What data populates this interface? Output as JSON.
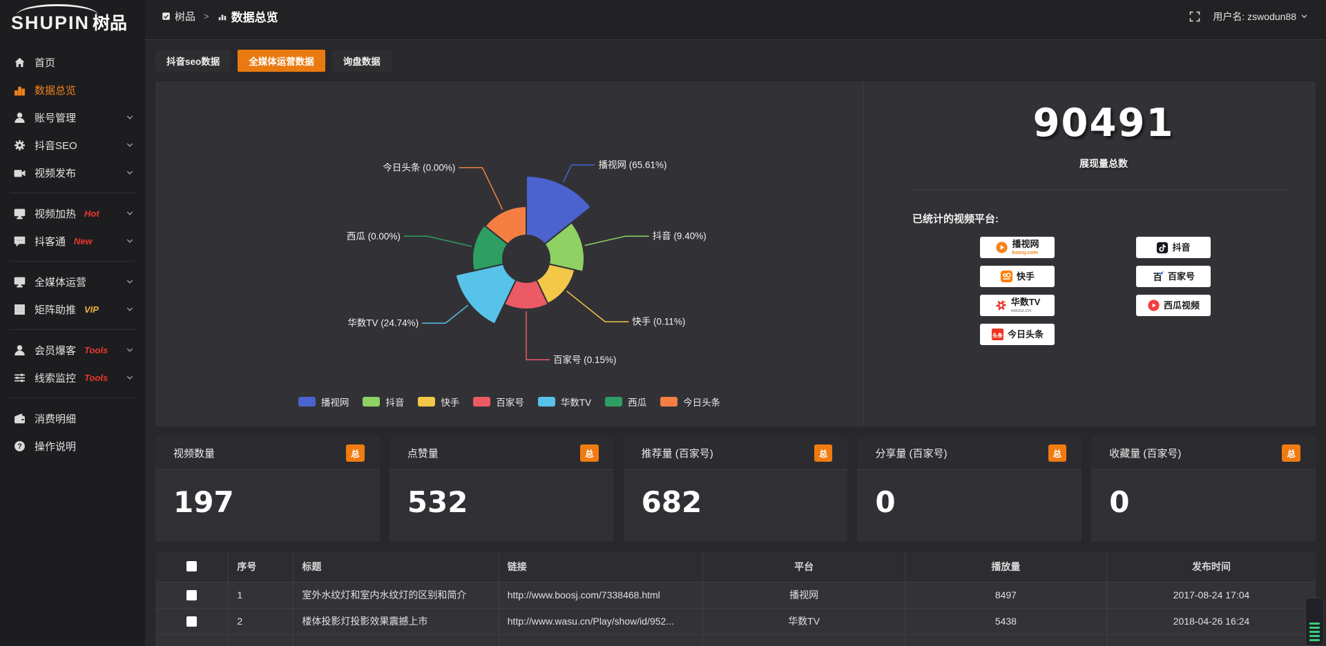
{
  "logo": {
    "text_en": "SHUPIN",
    "text_cn": "树品"
  },
  "topbar": {
    "breadcrumb_root": "树品",
    "breadcrumb_sep": ">",
    "breadcrumb_current": "数据总览",
    "username_label": "用户名: zswodun88"
  },
  "sidebar": {
    "items": [
      {
        "key": "home",
        "label": "首页",
        "icon": "home"
      },
      {
        "key": "data-overview",
        "label": "数据总览",
        "icon": "chart",
        "active": true
      },
      {
        "key": "account-management",
        "label": "账号管理",
        "icon": "user",
        "expandable": true
      },
      {
        "key": "douyin-seo",
        "label": "抖音SEO",
        "icon": "gear",
        "expandable": true
      },
      {
        "key": "video-publish",
        "label": "视频发布",
        "icon": "publish",
        "expandable": true
      },
      {
        "divider": true
      },
      {
        "key": "video-heating",
        "label": "视频加热",
        "icon": "screen",
        "tag": "Hot",
        "tag_color": "#e8362e",
        "expandable": true
      },
      {
        "key": "douketong",
        "label": "抖客通",
        "icon": "chat",
        "tag": "New",
        "tag_color": "#e8362e",
        "expandable": true
      },
      {
        "divider": true
      },
      {
        "key": "omni-media",
        "label": "全媒体运营",
        "icon": "screen",
        "expandable": true
      },
      {
        "key": "matrix-boost",
        "label": "矩阵助推",
        "icon": "grid",
        "tag": "VIP",
        "tag_color": "#e9b23a",
        "expandable": true
      },
      {
        "divider": true
      },
      {
        "key": "member-burst",
        "label": "会员爆客",
        "icon": "person",
        "tag": "Tools",
        "tag_color": "#e8362e",
        "expandable": true
      },
      {
        "key": "lead-monitor",
        "label": "线索监控",
        "icon": "sliders",
        "tag": "Tools",
        "tag_color": "#e8362e",
        "expandable": true
      },
      {
        "divider": true
      },
      {
        "key": "expense-detail",
        "label": "消费明细",
        "icon": "wallet"
      },
      {
        "key": "instructions",
        "label": "操作说明",
        "icon": "help"
      }
    ]
  },
  "tabs": {
    "items": [
      {
        "label": "抖音seo数据"
      },
      {
        "label": "全媒体运营数据",
        "active": true
      },
      {
        "label": "询盘数据"
      }
    ]
  },
  "chart_data": {
    "type": "pie",
    "style": "rose",
    "legend_position": "bottom",
    "labels": [
      "播视网",
      "抖音",
      "快手",
      "百家号",
      "华数TV",
      "西瓜",
      "今日头条"
    ],
    "values_percent": [
      65.61,
      9.4,
      0.11,
      0.15,
      24.74,
      0.0,
      0.0
    ],
    "percent_labels": [
      "65.61%",
      "9.40%",
      "0.11%",
      "0.15%",
      "24.74%",
      "0.00%",
      "0.00%"
    ],
    "colors": [
      "#4a63cf",
      "#8fd163",
      "#f3c748",
      "#ec5a66",
      "#57c3e9",
      "#2e9e62",
      "#f57f43"
    ],
    "slice_radius_px": [
      120,
      84,
      72,
      73,
      105,
      78,
      76
    ],
    "hole_radius_px": 34
  },
  "summary": {
    "total_value": "90491",
    "total_label": "展现量总数",
    "platforms_title": "已统计的视频平台:"
  },
  "platforms": [
    {
      "name": "播视网",
      "sub": "boosj.com",
      "sub_color": "#f6821a",
      "icon": "boosj"
    },
    {
      "name": "抖音",
      "icon": "douyin"
    },
    {
      "name": "快手",
      "icon": "kuaishou"
    },
    {
      "name": "百家号",
      "icon": "baijiahao"
    },
    {
      "name": "华数TV",
      "sub": "wasu.cn",
      "sub_color": "#9a9a9a",
      "icon": "wasu"
    },
    {
      "name": "西瓜视频",
      "icon": "xigua"
    },
    {
      "name": "今日头条",
      "icon": "toutiao"
    }
  ],
  "stat_cards": [
    {
      "title": "视频数量",
      "badge": "总",
      "value": "197"
    },
    {
      "title": "点赞量",
      "badge": "总",
      "value": "532"
    },
    {
      "title": "推荐量 (百家号)",
      "badge": "总",
      "value": "682"
    },
    {
      "title": "分享量 (百家号)",
      "badge": "总",
      "value": "0"
    },
    {
      "title": "收藏量 (百家号)",
      "badge": "总",
      "value": "0"
    }
  ],
  "table": {
    "columns": [
      "序号",
      "标题",
      "链接",
      "平台",
      "播放量",
      "发布时间"
    ],
    "rows": [
      {
        "index": "1",
        "title": "室外水纹灯和室内水纹灯的区别和简介",
        "link": "http://www.boosj.com/7338468.html",
        "platform": "播视网",
        "plays": "8497",
        "time": "2017-08-24 17:04"
      },
      {
        "index": "2",
        "title": "楼体投影灯投影效果震撼上市",
        "link": "http://www.wasu.cn/Play/show/id/952...",
        "platform": "华数TV",
        "plays": "5438",
        "time": "2018-04-26 16:24"
      }
    ]
  }
}
